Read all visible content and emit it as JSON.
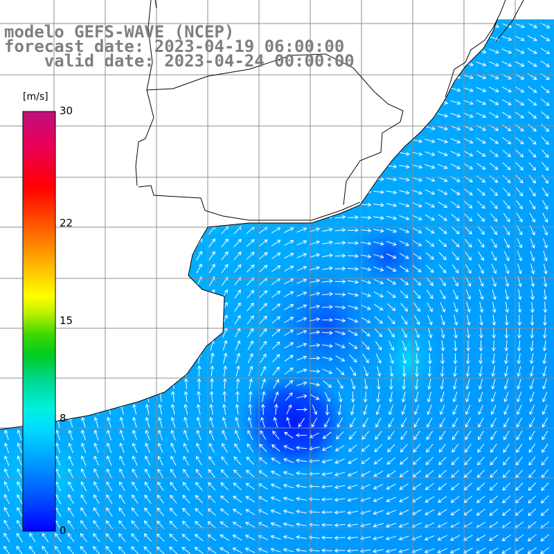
{
  "title": {
    "line1": "modelo GEFS-WAVE (NCEP)",
    "line2": "forecast date: 2023-04-19 06:00:00",
    "line3": "    valid date: 2023-04-24 00:00:00"
  },
  "colorbar": {
    "unit": "[m/s]",
    "ticks": [
      "30",
      "22",
      "15",
      "8",
      "0"
    ],
    "tick_values": [
      30,
      22,
      15,
      8,
      0
    ],
    "min": 0,
    "max": 30,
    "colors": [
      "#0000ff",
      "#0066ff",
      "#00b4ff",
      "#00e8f0",
      "#00c080",
      "#00cc00",
      "#80e000",
      "#ffff00",
      "#ffb000",
      "#ff6000",
      "#ff0000",
      "#e00060",
      "#c0107a"
    ]
  },
  "map": {
    "kind": "wind speed and direction over ocean (arrow field)",
    "land_color": "#ffffff",
    "coastline_color": "#000000",
    "grid_color": "#8c8c8c"
  }
}
